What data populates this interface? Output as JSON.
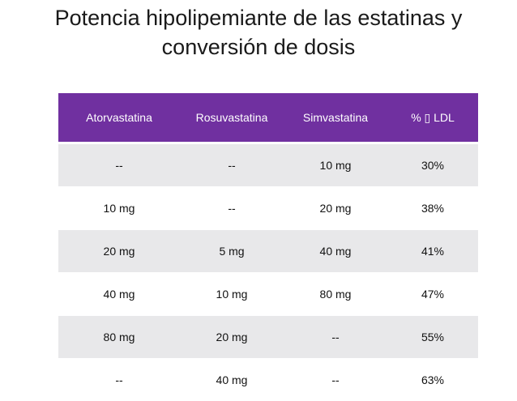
{
  "title": [
    "Potencia hipolipemiante de las estatinas y",
    "conversión de dosis"
  ],
  "table": {
    "header": [
      "Atorvastatina",
      "Rosuvastatina",
      "Simvastatina",
      "% ▯ LDL"
    ],
    "rows": [
      [
        "--",
        "--",
        "10 mg",
        "30%"
      ],
      [
        "10 mg",
        "--",
        "20 mg",
        "38%"
      ],
      [
        "20 mg",
        "5 mg",
        "40 mg",
        "41%"
      ],
      [
        "40 mg",
        "10 mg",
        "80 mg",
        "47%"
      ],
      [
        "80 mg",
        "20 mg",
        "--",
        "55%"
      ],
      [
        "--",
        "40 mg",
        "--",
        "63%"
      ]
    ]
  }
}
